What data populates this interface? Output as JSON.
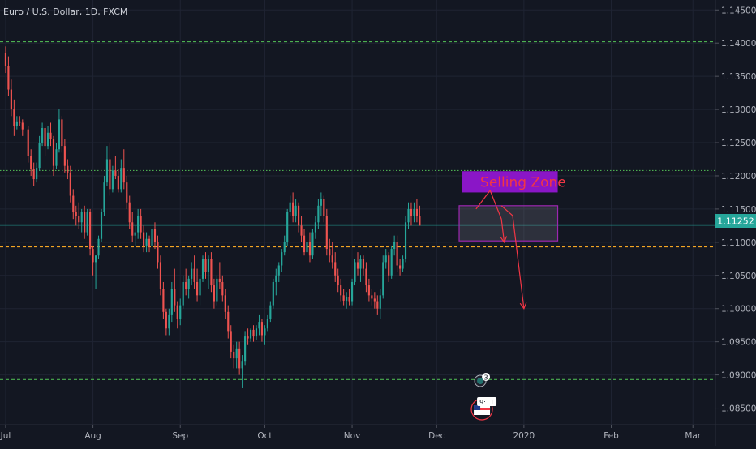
{
  "header": {
    "symbol_title": "Euro / U.S. Dollar, 1D, FXCM"
  },
  "chart_data": {
    "type": "candlestick",
    "symbol": "Euro / U.S. Dollar",
    "interval": "1D",
    "source": "FXCM",
    "y_ticks": [
      "1.14500",
      "1.14000",
      "1.13500",
      "1.13000",
      "1.12500",
      "1.12000",
      "1.11500",
      "1.11000",
      "1.10500",
      "1.10000",
      "1.09500",
      "1.09000",
      "1.08500"
    ],
    "y_tick_values": [
      1.145,
      1.14,
      1.135,
      1.13,
      1.125,
      1.12,
      1.115,
      1.11,
      1.105,
      1.1,
      1.095,
      1.09,
      1.085
    ],
    "x_ticks": [
      "Jul",
      "Aug",
      "Sep",
      "Oct",
      "Nov",
      "Dec",
      "2020",
      "Feb",
      "Mar"
    ],
    "x_tick_days": [
      0,
      31,
      62,
      92,
      123,
      153,
      184,
      215,
      244
    ],
    "ylim": [
      1.0825,
      1.1465
    ],
    "xlim_days": [
      -2,
      252
    ],
    "current_price": "1.11252",
    "current_price_value": 1.11252,
    "horizontal_levels": [
      {
        "value": 1.1402,
        "style": "dashed",
        "color": "#4caf50"
      },
      {
        "value": 1.1208,
        "style": "dotted",
        "color": "#4caf50"
      },
      {
        "value": 1.1093,
        "style": "dashed",
        "color": "#f5a623"
      },
      {
        "value": 1.0893,
        "style": "dashed",
        "color": "#4caf50"
      }
    ],
    "selling_zone": {
      "label": "Selling Zone",
      "day_from": 162,
      "day_to": 196,
      "top": 1.1207,
      "bottom": 1.1175,
      "fill": "#8a16c7"
    },
    "range_box": {
      "day_from": 161,
      "day_to": 196,
      "top": 1.1155,
      "bottom": 1.1102
    },
    "arrows": [
      {
        "points": [
          [
            167,
            1.115
          ],
          [
            172,
            1.1178
          ],
          [
            176,
            1.1135
          ],
          [
            177,
            1.11
          ]
        ]
      },
      {
        "points": [
          [
            176,
            1.1155
          ],
          [
            180,
            1.114
          ],
          [
            184,
            1.1
          ]
        ]
      }
    ],
    "event_badge": "3",
    "event_flag_label": "9:11",
    "colors": {
      "up": "#26a69a",
      "down": "#ef5350",
      "bg": "#131722",
      "grid": "#1f2433",
      "axis_text": "#b2b5be"
    },
    "candles": [
      [
        0,
        1.1385,
        1.1395,
        1.1355,
        1.1365
      ],
      [
        1,
        1.1365,
        1.138,
        1.132,
        1.133
      ],
      [
        2,
        1.133,
        1.1345,
        1.129,
        1.13
      ],
      [
        3,
        1.13,
        1.1315,
        1.126,
        1.1275
      ],
      [
        4,
        1.1275,
        1.129,
        1.127,
        1.1282
      ],
      [
        5,
        1.1282,
        1.129,
        1.1275,
        1.128
      ],
      [
        6,
        1.128,
        1.1285,
        1.126,
        1.127
      ],
      [
        8,
        1.127,
        1.1275,
        1.122,
        1.123
      ],
      [
        9,
        1.123,
        1.124,
        1.12,
        1.121
      ],
      [
        10,
        1.121,
        1.122,
        1.1185,
        1.1195
      ],
      [
        11,
        1.1195,
        1.122,
        1.119,
        1.1212
      ],
      [
        12,
        1.1212,
        1.126,
        1.1208,
        1.125
      ],
      [
        13,
        1.125,
        1.128,
        1.1245,
        1.1272
      ],
      [
        14,
        1.1272,
        1.1275,
        1.123,
        1.1245
      ],
      [
        15,
        1.1245,
        1.1275,
        1.124,
        1.1265
      ],
      [
        16,
        1.1265,
        1.128,
        1.1245,
        1.1255
      ],
      [
        17,
        1.1255,
        1.126,
        1.12,
        1.1215
      ],
      [
        18,
        1.1215,
        1.125,
        1.121,
        1.124
      ],
      [
        19,
        1.124,
        1.13,
        1.1235,
        1.1285
      ],
      [
        20,
        1.1285,
        1.129,
        1.1235,
        1.1245
      ],
      [
        21,
        1.1245,
        1.1255,
        1.1205,
        1.1215
      ],
      [
        22,
        1.1215,
        1.1225,
        1.1195,
        1.1205
      ],
      [
        23,
        1.1205,
        1.1215,
        1.116,
        1.117
      ],
      [
        24,
        1.117,
        1.118,
        1.1135,
        1.1145
      ],
      [
        25,
        1.1145,
        1.1155,
        1.1125,
        1.114
      ],
      [
        26,
        1.114,
        1.116,
        1.112,
        1.113
      ],
      [
        27,
        1.113,
        1.115,
        1.1115,
        1.1145
      ],
      [
        28,
        1.1145,
        1.1155,
        1.1105,
        1.1115
      ],
      [
        29,
        1.1115,
        1.115,
        1.111,
        1.1145
      ],
      [
        30,
        1.1145,
        1.115,
        1.108,
        1.109
      ],
      [
        31,
        1.109,
        1.1095,
        1.105,
        1.107
      ],
      [
        32,
        1.107,
        1.108,
        1.103,
        1.108
      ],
      [
        33,
        1.108,
        1.111,
        1.1075,
        1.1105
      ],
      [
        34,
        1.1105,
        1.115,
        1.11,
        1.1145
      ],
      [
        35,
        1.1145,
        1.12,
        1.114,
        1.119
      ],
      [
        36,
        1.119,
        1.1245,
        1.1185,
        1.1225
      ],
      [
        37,
        1.1225,
        1.125,
        1.117,
        1.118
      ],
      [
        38,
        1.118,
        1.1215,
        1.1175,
        1.1208
      ],
      [
        39,
        1.1208,
        1.123,
        1.1195,
        1.12
      ],
      [
        40,
        1.12,
        1.121,
        1.1175,
        1.118
      ],
      [
        41,
        1.118,
        1.1225,
        1.1175,
        1.1212
      ],
      [
        42,
        1.1212,
        1.124,
        1.118,
        1.119
      ],
      [
        43,
        1.119,
        1.12,
        1.115,
        1.116
      ],
      [
        44,
        1.116,
        1.117,
        1.112,
        1.113
      ],
      [
        45,
        1.113,
        1.1145,
        1.11,
        1.111
      ],
      [
        46,
        1.111,
        1.1125,
        1.1095,
        1.1115
      ],
      [
        47,
        1.1115,
        1.115,
        1.1105,
        1.114
      ],
      [
        48,
        1.114,
        1.115,
        1.1105,
        1.1115
      ],
      [
        49,
        1.1115,
        1.1125,
        1.1085,
        1.1095
      ],
      [
        50,
        1.1095,
        1.1115,
        1.1085,
        1.1105
      ],
      [
        51,
        1.1105,
        1.111,
        1.1085,
        1.1095
      ],
      [
        52,
        1.1095,
        1.113,
        1.109,
        1.112
      ],
      [
        53,
        1.112,
        1.113,
        1.109,
        1.11
      ],
      [
        54,
        1.11,
        1.111,
        1.106,
        1.107
      ],
      [
        55,
        1.107,
        1.108,
        1.102,
        1.103
      ],
      [
        56,
        1.103,
        1.104,
        1.0985,
        1.0995
      ],
      [
        57,
        1.0995,
        1.1,
        1.096,
        1.097
      ],
      [
        58,
        1.097,
        1.1,
        1.096,
        1.099
      ],
      [
        59,
        1.099,
        1.104,
        1.098,
        1.103
      ],
      [
        60,
        1.103,
        1.106,
        1.0995,
        1.1005
      ],
      [
        61,
        1.1005,
        1.101,
        1.097,
        1.0985
      ],
      [
        62,
        1.0985,
        1.1015,
        1.0975,
        1.1005
      ],
      [
        63,
        1.1005,
        1.105,
        1.1,
        1.104
      ],
      [
        64,
        1.104,
        1.106,
        1.102,
        1.103
      ],
      [
        65,
        1.103,
        1.105,
        1.1015,
        1.1045
      ],
      [
        66,
        1.1045,
        1.107,
        1.1035,
        1.106
      ],
      [
        67,
        1.106,
        1.108,
        1.103,
        1.104
      ],
      [
        68,
        1.104,
        1.106,
        1.101,
        1.102
      ],
      [
        69,
        1.102,
        1.105,
        1.1005,
        1.1045
      ],
      [
        70,
        1.1045,
        1.108,
        1.104,
        1.1075
      ],
      [
        71,
        1.1075,
        1.1085,
        1.1045,
        1.1055
      ],
      [
        72,
        1.1055,
        1.108,
        1.103,
        1.1075
      ],
      [
        73,
        1.1075,
        1.1085,
        1.1025,
        1.1035
      ],
      [
        74,
        1.1035,
        1.1045,
        1.1,
        1.101
      ],
      [
        75,
        1.101,
        1.105,
        1.1005,
        1.1045
      ],
      [
        76,
        1.1045,
        1.107,
        1.103,
        1.104
      ],
      [
        77,
        1.104,
        1.105,
        1.101,
        1.102
      ],
      [
        78,
        1.102,
        1.103,
        1.0985,
        1.0995
      ],
      [
        79,
        1.0995,
        1.1005,
        1.0955,
        1.0965
      ],
      [
        80,
        1.0965,
        1.0975,
        1.0925,
        1.0935
      ],
      [
        81,
        1.0935,
        1.0945,
        1.091,
        1.0925
      ],
      [
        82,
        1.0925,
        1.095,
        1.091,
        1.094
      ],
      [
        83,
        1.094,
        1.095,
        1.09,
        1.091
      ],
      [
        84,
        1.091,
        1.093,
        1.088,
        1.092
      ],
      [
        85,
        1.092,
        1.0965,
        1.0915,
        1.0958
      ],
      [
        86,
        1.0958,
        1.097,
        1.0945,
        1.0955
      ],
      [
        87,
        1.0955,
        1.097,
        1.095,
        1.0968
      ],
      [
        88,
        1.0968,
        1.0975,
        1.095,
        1.0958
      ],
      [
        89,
        1.0958,
        1.0975,
        1.0952,
        1.097
      ],
      [
        90,
        1.097,
        1.099,
        1.096,
        1.098
      ],
      [
        91,
        1.098,
        1.0985,
        1.095,
        1.096
      ],
      [
        92,
        1.096,
        1.0975,
        1.0945,
        1.097
      ],
      [
        93,
        1.097,
        1.099,
        1.0965,
        1.0985
      ],
      [
        94,
        1.0985,
        1.101,
        1.098,
        1.1005
      ],
      [
        95,
        1.1005,
        1.1045,
        1.1,
        1.104
      ],
      [
        96,
        1.104,
        1.106,
        1.102,
        1.105
      ],
      [
        97,
        1.105,
        1.107,
        1.104,
        1.1065
      ],
      [
        98,
        1.1065,
        1.109,
        1.1055,
        1.1085
      ],
      [
        99,
        1.1085,
        1.111,
        1.108,
        1.11
      ],
      [
        100,
        1.11,
        1.115,
        1.1095,
        1.1145
      ],
      [
        101,
        1.1145,
        1.117,
        1.114,
        1.116
      ],
      [
        102,
        1.116,
        1.1175,
        1.113,
        1.114
      ],
      [
        103,
        1.114,
        1.1165,
        1.113,
        1.1155
      ],
      [
        104,
        1.1155,
        1.116,
        1.1115,
        1.1125
      ],
      [
        105,
        1.1125,
        1.114,
        1.11,
        1.111
      ],
      [
        106,
        1.111,
        1.112,
        1.108,
        1.1085
      ],
      [
        107,
        1.1085,
        1.111,
        1.108,
        1.11
      ],
      [
        108,
        1.11,
        1.1115,
        1.107,
        1.108
      ],
      [
        109,
        1.108,
        1.112,
        1.1075,
        1.1115
      ],
      [
        110,
        1.1115,
        1.114,
        1.1105,
        1.113
      ],
      [
        111,
        1.113,
        1.1165,
        1.112,
        1.1155
      ],
      [
        112,
        1.1155,
        1.1175,
        1.114,
        1.1165
      ],
      [
        113,
        1.1165,
        1.117,
        1.113,
        1.114
      ],
      [
        114,
        1.114,
        1.115,
        1.108,
        1.109
      ],
      [
        115,
        1.109,
        1.1105,
        1.107,
        1.108
      ],
      [
        116,
        1.108,
        1.11,
        1.106,
        1.107
      ],
      [
        117,
        1.107,
        1.1085,
        1.104,
        1.105
      ],
      [
        118,
        1.105,
        1.106,
        1.1025,
        1.1035
      ],
      [
        119,
        1.1035,
        1.1045,
        1.101,
        1.102
      ],
      [
        120,
        1.102,
        1.103,
        1.1005,
        1.1012
      ],
      [
        121,
        1.1012,
        1.1025,
        1.1,
        1.1018
      ],
      [
        122,
        1.1018,
        1.103,
        1.1005,
        1.101
      ],
      [
        123,
        1.101,
        1.1045,
        1.1005,
        1.104
      ],
      [
        124,
        1.104,
        1.1075,
        1.1035,
        1.107
      ],
      [
        125,
        1.107,
        1.1085,
        1.105,
        1.106
      ],
      [
        126,
        1.106,
        1.108,
        1.104,
        1.1075
      ],
      [
        127,
        1.1075,
        1.108,
        1.105,
        1.106
      ],
      [
        128,
        1.106,
        1.107,
        1.1025,
        1.1035
      ],
      [
        129,
        1.1035,
        1.1045,
        1.101,
        1.102
      ],
      [
        130,
        1.102,
        1.103,
        1.1005,
        1.1015
      ],
      [
        131,
        1.1015,
        1.1025,
        1.1,
        1.101
      ],
      [
        132,
        1.101,
        1.102,
        1.099,
        1.1
      ],
      [
        133,
        1.1,
        1.103,
        1.0985,
        1.102
      ],
      [
        134,
        1.102,
        1.108,
        1.1015,
        1.107
      ],
      [
        135,
        1.107,
        1.109,
        1.106,
        1.108
      ],
      [
        136,
        1.108,
        1.1085,
        1.104,
        1.105
      ],
      [
        137,
        1.105,
        1.1095,
        1.1045,
        1.109
      ],
      [
        138,
        1.109,
        1.111,
        1.108,
        1.11
      ],
      [
        139,
        1.11,
        1.111,
        1.1055,
        1.1065
      ],
      [
        140,
        1.1065,
        1.1075,
        1.105,
        1.106
      ],
      [
        141,
        1.106,
        1.108,
        1.1055,
        1.1075
      ],
      [
        142,
        1.1075,
        1.114,
        1.107,
        1.113
      ],
      [
        143,
        1.113,
        1.116,
        1.112,
        1.115
      ],
      [
        144,
        1.115,
        1.116,
        1.1125,
        1.114
      ],
      [
        145,
        1.114,
        1.116,
        1.113,
        1.115
      ],
      [
        146,
        1.115,
        1.1165,
        1.113,
        1.114
      ],
      [
        147,
        1.114,
        1.1155,
        1.1125,
        1.1125
      ]
    ]
  }
}
